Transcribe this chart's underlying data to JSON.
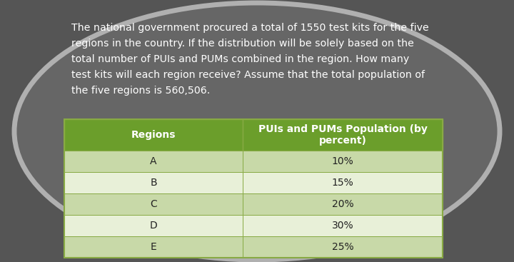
{
  "paragraph_text": "The national government procured a total of 1550 test kits for the five\nregions in the country. If the distribution will be solely based on the\ntotal number of PUIs and PUMs combined in the region. How many\ntest kits will each region receive? Assume that the total population of\nthe five regions is 560,506.",
  "col1_header": "Regions",
  "col2_header": "PUIs and PUMs Population (by\npercent)",
  "rows": [
    [
      "A",
      "10%"
    ],
    [
      "B",
      "15%"
    ],
    [
      "C",
      "20%"
    ],
    [
      "D",
      "30%"
    ],
    [
      "E",
      "25%"
    ]
  ],
  "header_bg": "#6b9e2b",
  "header_text_color": "#ffffff",
  "row_bg_even": "#c8d9a8",
  "row_bg_odd": "#e8f0d8",
  "row_text_color": "#222222",
  "table_border_color": "#88aa44",
  "bg_outer": "#555555",
  "bg_inner": "#666666",
  "oval_border_color": "#b0b0b0",
  "text_color": "#ffffff",
  "fig_width": 7.2,
  "fig_height": 3.67
}
